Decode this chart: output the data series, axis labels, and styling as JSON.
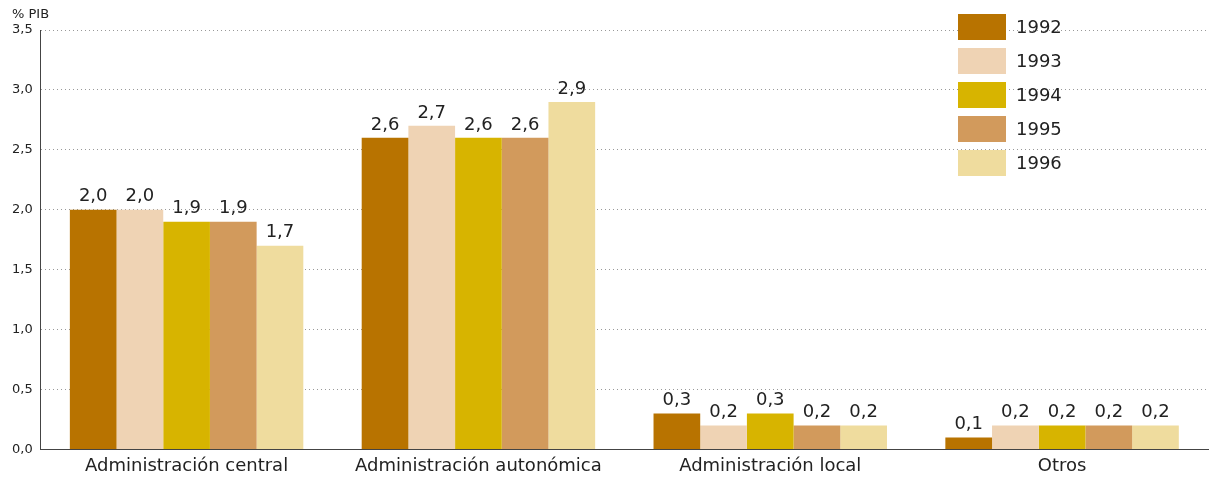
{
  "chart_data": {
    "type": "bar",
    "ylabel": "% PIB",
    "categories": [
      "Administración central",
      "Administración autonómica",
      "Administración local",
      "Otros"
    ],
    "series": [
      {
        "name": "1992",
        "color": "#b87300",
        "values": [
          2.0,
          2.6,
          0.3,
          0.1
        ],
        "value_labels": [
          "2,0",
          "2,6",
          "0,3",
          "0,1"
        ]
      },
      {
        "name": "1993",
        "color": "#efd3b4",
        "values": [
          2.0,
          2.7,
          0.2,
          0.2
        ],
        "value_labels": [
          "2,0",
          "2,7",
          "0,2",
          "0,2"
        ]
      },
      {
        "name": "1994",
        "color": "#d7b400",
        "values": [
          1.9,
          2.6,
          0.3,
          0.2
        ],
        "value_labels": [
          "1,9",
          "2,6",
          "0,3",
          "0,2"
        ]
      },
      {
        "name": "1995",
        "color": "#d29a5c",
        "values": [
          1.9,
          2.6,
          0.2,
          0.2
        ],
        "value_labels": [
          "1,9",
          "2,6",
          "0,2",
          "0,2"
        ]
      },
      {
        "name": "1996",
        "color": "#efdc9e",
        "values": [
          1.7,
          2.9,
          0.2,
          0.2
        ],
        "value_labels": [
          "1,7",
          "2,9",
          "0,2",
          "0,2"
        ]
      }
    ],
    "ylim": [
      0,
      3.5
    ],
    "yticks": [
      {
        "value": 0,
        "label": "0,0"
      },
      {
        "value": 0.5,
        "label": "0,5"
      },
      {
        "value": 1,
        "label": "1,0"
      },
      {
        "value": 1.5,
        "label": "1,5"
      },
      {
        "value": 2,
        "label": "2,0"
      },
      {
        "value": 2.5,
        "label": "2,5"
      },
      {
        "value": 3,
        "label": "3,0"
      },
      {
        "value": 3.5,
        "label": "3,5"
      }
    ],
    "grid": "y",
    "legend": "top right"
  }
}
